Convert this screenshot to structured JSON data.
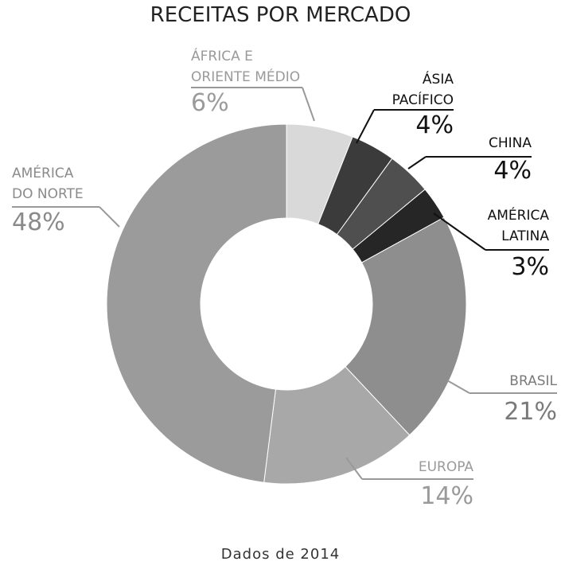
{
  "chart_data": {
    "type": "donut",
    "title": "RECEITAS POR MERCADO",
    "subtitle": "Dados de 2014",
    "categories": [
      "ÁFRICA E\nORIENTE MÉDIO",
      "ÁSIA\nPACÍFICO",
      "CHINA",
      "AMÉRICA\nLATINA",
      "BRASIL",
      "EUROPA",
      "AMÉRICA\nDO NORTE"
    ],
    "values": [
      6,
      4,
      4,
      3,
      21,
      14,
      48
    ],
    "value_labels": [
      "6%",
      "4%",
      "4%",
      "3%",
      "21%",
      "14%",
      "48%"
    ],
    "colors": [
      "#d9d9d9",
      "#3b3b3b",
      "#4f4f4f",
      "#262626",
      "#8e8e8e",
      "#a8a8a8",
      "#9b9b9b"
    ],
    "label_colors": [
      "#9a9a9a",
      "#111111",
      "#111111",
      "#111111",
      "#7a7a7a",
      "#9a9a9a",
      "#8a8a8a"
    ]
  }
}
